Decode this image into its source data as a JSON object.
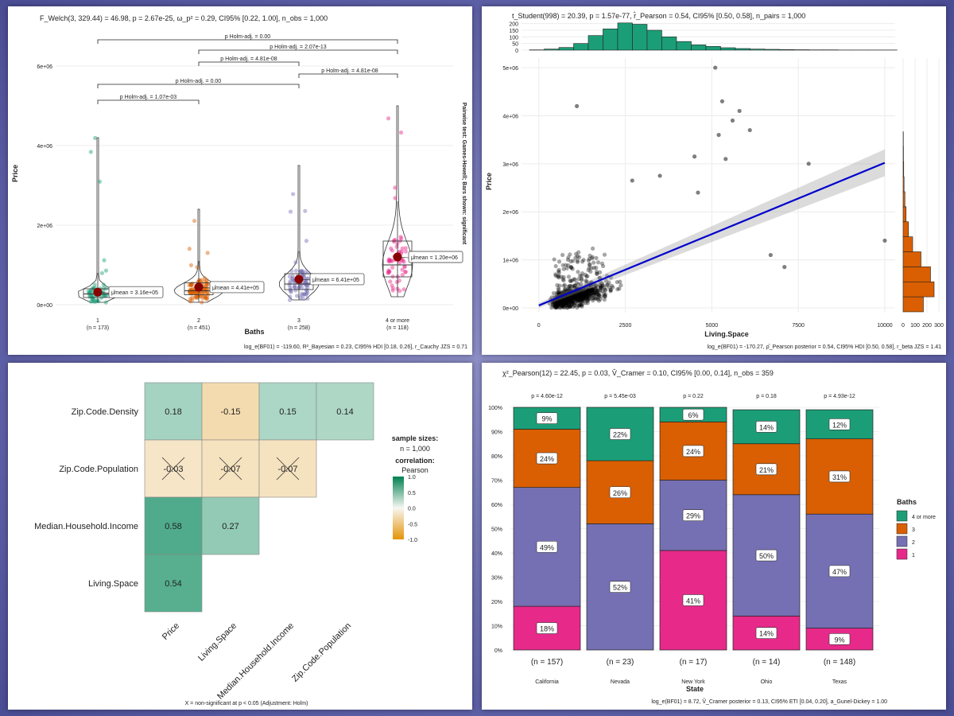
{
  "chart_data": [
    {
      "type": "box",
      "subtitle": "F_Welch(3, 329.44) = 46.98, p = 2.67e-25, ω_p² = 0.29, CI95% [0.22, 1.00], n_obs = 1,000",
      "caption": "log_e(BF01) = -119.60, R²_Bayesian = 0.23, CI95% HDI [0.18, 0.26], r_Cauchy JZS = 0.71",
      "xlabel": "Baths",
      "ylabel": "Price",
      "side_label": "Pairwise test: Games-Howell; Bars shown: significant",
      "ylim": [
        0,
        6500000
      ],
      "yticks": [
        {
          "v": 0,
          "label": "0e+00"
        },
        {
          "v": 2000000,
          "label": "2e+06"
        },
        {
          "v": 4000000,
          "label": "4e+06"
        },
        {
          "v": 6000000,
          "label": "6e+06"
        }
      ],
      "groups": [
        {
          "name": "1",
          "n_label": "(n = 173)",
          "color": "#1b9e77",
          "mean": 316000,
          "mean_label": "μ̂mean = 3.16e+05",
          "q1": 180000,
          "median": 270000,
          "q3": 400000,
          "wlo": 60000,
          "whi": 800000,
          "max": 4200000
        },
        {
          "name": "2",
          "n_label": "(n = 451)",
          "color": "#d95f02",
          "mean": 441000,
          "mean_label": "μ̂mean = 4.41e+05",
          "q1": 250000,
          "median": 350000,
          "q3": 550000,
          "wlo": 60000,
          "whi": 1100000,
          "max": 2400000
        },
        {
          "name": "3",
          "n_label": "(n = 258)",
          "color": "#7570b3",
          "mean": 641000,
          "mean_label": "μ̂mean = 6.41e+05",
          "q1": 380000,
          "median": 520000,
          "q3": 780000,
          "wlo": 120000,
          "whi": 1350000,
          "max": 3500000
        },
        {
          "name": "4 or more",
          "n_label": "(n = 118)",
          "color": "#e7298a",
          "mean": 1200000,
          "mean_label": "μ̂mean = 1.20e+06",
          "q1": 700000,
          "median": 1000000,
          "q3": 1600000,
          "wlo": 200000,
          "whi": 2600000,
          "max": 5000000
        }
      ],
      "pairwise": [
        {
          "from": 0,
          "to": 1,
          "label": "p Holm-adj. = 1.07e-03"
        },
        {
          "from": 0,
          "to": 2,
          "label": "p Holm-adj. = 0.00"
        },
        {
          "from": 0,
          "to": 3,
          "label": "p Holm-adj. = 0.00"
        },
        {
          "from": 1,
          "to": 2,
          "label": "p Holm-adj. = 4.81e-08"
        },
        {
          "from": 1,
          "to": 3,
          "label": "p Holm-adj. = 2.07e-13"
        },
        {
          "from": 2,
          "to": 3,
          "label": "p Holm-adj. = 4.81e-08"
        }
      ]
    },
    {
      "type": "scatter",
      "subtitle": "t_Student(998) = 20.39, p = 1.57e-77, r̂_Pearson = 0.54, CI95% [0.50, 0.58], n_pairs = 1,000",
      "caption": "log_e(BF01) = -170.27, ρ̂_Pearson posterior = 0.54, CI95% HDI [0.50, 0.58], r_beta JZS = 1.41",
      "xlabel": "Living.Space",
      "ylabel": "Price",
      "xlim": [
        -500,
        10300
      ],
      "ylim": [
        -100000,
        5200000
      ],
      "xticks": [
        {
          "v": 0,
          "label": "0"
        },
        {
          "v": 2500,
          "label": "2500"
        },
        {
          "v": 5000,
          "label": "5000"
        },
        {
          "v": 7500,
          "label": "7500"
        },
        {
          "v": 10000,
          "label": "10000"
        }
      ],
      "yticks": [
        {
          "v": 0,
          "label": "0e+00"
        },
        {
          "v": 1000000,
          "label": "1e+06"
        },
        {
          "v": 2000000,
          "label": "2e+06"
        },
        {
          "v": 3000000,
          "label": "3e+06"
        },
        {
          "v": 4000000,
          "label": "4e+06"
        },
        {
          "v": 5000000,
          "label": "5e+06"
        }
      ],
      "regression": {
        "x0": 0,
        "y0": 50000,
        "x1": 10000,
        "y1": 3020000
      },
      "outliers": [
        [
          1100,
          4200000
        ],
        [
          5100,
          5000000
        ],
        [
          5300,
          4300000
        ],
        [
          5800,
          4100000
        ],
        [
          5600,
          3900000
        ],
        [
          6100,
          3700000
        ],
        [
          5200,
          3600000
        ],
        [
          4500,
          3150000
        ],
        [
          5400,
          3100000
        ],
        [
          7800,
          3000000
        ],
        [
          3500,
          2750000
        ],
        [
          2700,
          2650000
        ],
        [
          4600,
          2400000
        ],
        [
          10000,
          1400000
        ],
        [
          6700,
          1100000
        ],
        [
          7100,
          850000
        ]
      ],
      "top_hist": {
        "ticks": [
          0,
          50,
          100,
          150,
          200
        ],
        "labels": [
          "0",
          "50",
          "100",
          "150",
          "200"
        ],
        "counts": [
          2,
          8,
          20,
          50,
          110,
          160,
          205,
          195,
          150,
          100,
          65,
          40,
          28,
          18,
          12,
          8,
          6,
          4,
          3,
          2,
          2,
          1,
          1,
          1,
          1
        ]
      },
      "right_hist": {
        "ticks": [
          0,
          100,
          200,
          300
        ],
        "labels": [
          "0",
          "100",
          "200",
          "300"
        ],
        "counts": [
          170,
          260,
          230,
          150,
          80,
          45,
          25,
          15,
          8,
          5,
          3,
          2
        ]
      }
    },
    {
      "type": "heatmap",
      "rows": [
        "Zip.Code.Density",
        "Zip.Code.Population",
        "Median.Household.Income",
        "Living.Space"
      ],
      "cols": [
        "Price",
        "Living.Space",
        "Median.Household.Income",
        "Zip.Code.Population"
      ],
      "cells": [
        [
          {
            "v": 0.18,
            "label": "0.18",
            "ns": false
          },
          {
            "v": -0.15,
            "label": "-0.15",
            "ns": false
          },
          {
            "v": 0.15,
            "label": "0.15",
            "ns": false
          },
          {
            "v": 0.14,
            "label": "0.14",
            "ns": false
          }
        ],
        [
          {
            "v": -0.03,
            "label": "-0.03",
            "ns": true
          },
          {
            "v": -0.07,
            "label": "-0.07",
            "ns": true
          },
          {
            "v": -0.07,
            "label": "-0.07",
            "ns": true
          },
          null
        ],
        [
          {
            "v": 0.58,
            "label": "0.58",
            "ns": false
          },
          {
            "v": 0.27,
            "label": "0.27",
            "ns": false
          },
          null,
          null
        ],
        [
          {
            "v": 0.54,
            "label": "0.54",
            "ns": false
          },
          null,
          null,
          null
        ]
      ],
      "legend": {
        "sample_title": "sample sizes:",
        "sample_value": "n = 1,000",
        "corr_title": "correlation:",
        "corr_subtitle": "Pearson",
        "ticks": [
          {
            "v": 1.0,
            "label": "1.0"
          },
          {
            "v": 0.5,
            "label": "0.5"
          },
          {
            "v": 0.0,
            "label": "0.0"
          },
          {
            "v": -0.5,
            "label": "-0.5"
          },
          {
            "v": -1.0,
            "label": "-1.0"
          }
        ]
      },
      "caption": "X = non-significant at p < 0.05 (Adjustment: Holm)"
    },
    {
      "type": "bar",
      "stacked": true,
      "subtitle": "χ²_Pearson(12) = 22.45, p = 0.03, V̂_Cramer = 0.10, CI95% [0.00, 0.14], n_obs = 359",
      "caption": "log_e(BF01) = 8.72, V̂_Cramer posterior = 0.13, CI95% ETI [0.04, 0.20], a_Gunel-Dickey = 1.00",
      "xlabel": "State",
      "legend_title": "Baths",
      "categories": [
        "California",
        "Nevada",
        "New York",
        "Ohio",
        "Texas"
      ],
      "p_labels": [
        "p = 4.60e-12",
        "p = 5.45e-03",
        "p = 0.22",
        "p = 0.18",
        "p = 4.93e-12"
      ],
      "n_labels": [
        "(n = 157)",
        "(n = 23)",
        "(n = 17)",
        "(n = 14)",
        "(n = 148)"
      ],
      "yticks": [
        "0%",
        "10%",
        "20%",
        "30%",
        "40%",
        "50%",
        "60%",
        "70%",
        "80%",
        "90%",
        "100%"
      ],
      "series": [
        {
          "name": "1",
          "color": "#e7298a",
          "values": [
            18,
            0,
            41,
            14,
            9
          ],
          "labels": [
            "18%",
            "",
            "41%",
            "14%",
            "9%"
          ]
        },
        {
          "name": "2",
          "color": "#7570b3",
          "values": [
            49,
            52,
            29,
            50,
            47
          ],
          "labels": [
            "49%",
            "52%",
            "29%",
            "50%",
            "47%"
          ]
        },
        {
          "name": "3",
          "color": "#d95f02",
          "values": [
            24,
            26,
            24,
            21,
            31
          ],
          "labels": [
            "24%",
            "26%",
            "24%",
            "21%",
            "31%"
          ]
        },
        {
          "name": "4 or more",
          "color": "#1b9e77",
          "values": [
            9,
            22,
            6,
            14,
            12
          ],
          "labels": [
            "9%",
            "22%",
            "6%",
            "14%",
            "12%"
          ]
        }
      ],
      "legend_order": [
        "4 or more",
        "3",
        "2",
        "1"
      ]
    }
  ]
}
